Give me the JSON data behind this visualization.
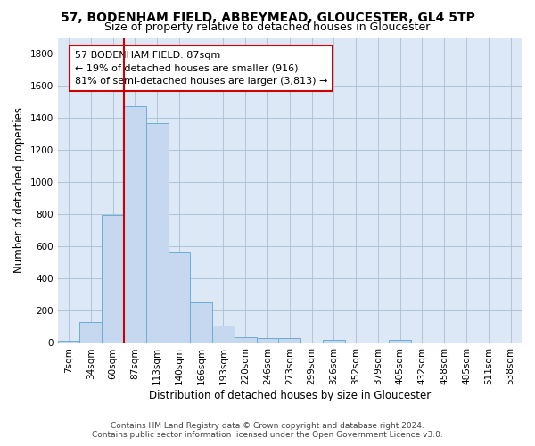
{
  "title": "57, BODENHAM FIELD, ABBEYMEAD, GLOUCESTER, GL4 5TP",
  "subtitle": "Size of property relative to detached houses in Gloucester",
  "xlabel": "Distribution of detached houses by size in Gloucester",
  "ylabel": "Number of detached properties",
  "bar_labels": [
    "7sqm",
    "34sqm",
    "60sqm",
    "87sqm",
    "113sqm",
    "140sqm",
    "166sqm",
    "193sqm",
    "220sqm",
    "246sqm",
    "273sqm",
    "299sqm",
    "326sqm",
    "352sqm",
    "379sqm",
    "405sqm",
    "432sqm",
    "458sqm",
    "485sqm",
    "511sqm",
    "538sqm"
  ],
  "bar_values": [
    15,
    130,
    795,
    1475,
    1370,
    565,
    250,
    110,
    35,
    30,
    28,
    0,
    20,
    0,
    0,
    20,
    0,
    0,
    0,
    0,
    0
  ],
  "bar_color": "#c5d8f0",
  "bar_edge_color": "#6baed6",
  "highlight_index": 3,
  "highlight_color": "#cc0000",
  "ylim": [
    0,
    1900
  ],
  "yticks": [
    0,
    200,
    400,
    600,
    800,
    1000,
    1200,
    1400,
    1600,
    1800
  ],
  "annotation_line1": "57 BODENHAM FIELD: 87sqm",
  "annotation_line2": "← 19% of detached houses are smaller (916)",
  "annotation_line3": "81% of semi-detached houses are larger (3,813) →",
  "footer1": "Contains HM Land Registry data © Crown copyright and database right 2024.",
  "footer2": "Contains public sector information licensed under the Open Government Licence v3.0.",
  "background_color": "#ffffff",
  "plot_bg_color": "#dce8f5",
  "grid_color": "#b0c4d8",
  "title_fontsize": 10,
  "subtitle_fontsize": 9,
  "axis_label_fontsize": 8.5,
  "tick_fontsize": 7.5,
  "footer_fontsize": 6.5
}
